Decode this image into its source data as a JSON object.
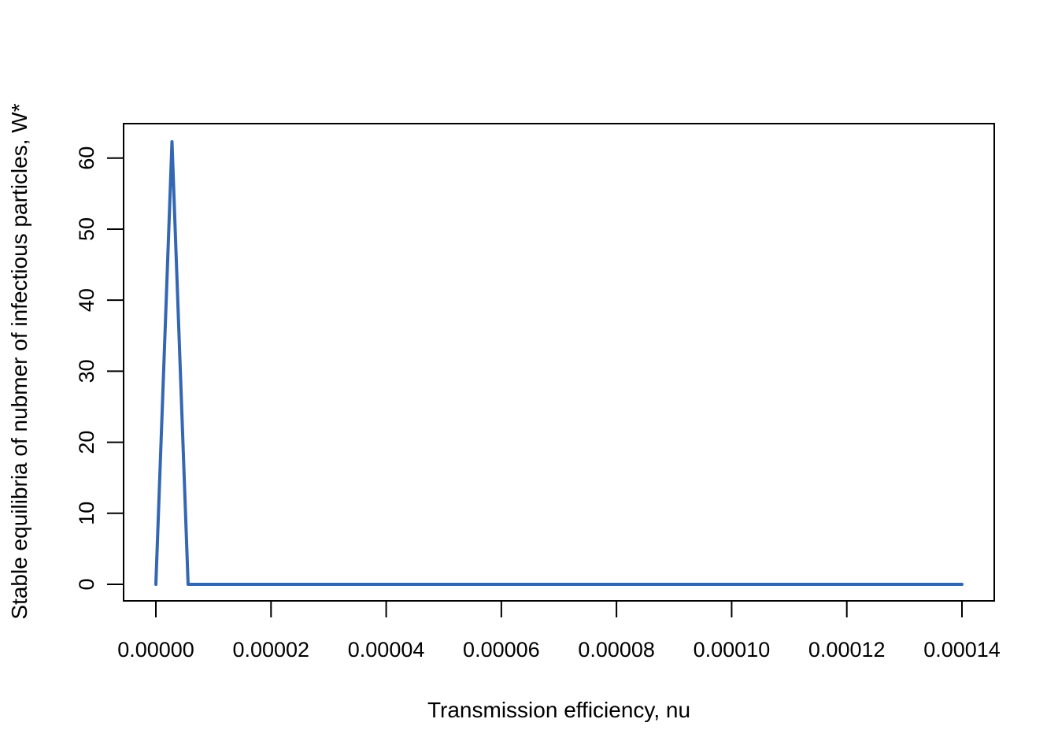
{
  "chart_data": {
    "type": "line",
    "title": "",
    "xlabel": "Transmission efficiency, nu",
    "ylabel": "Stable equilibria of nubmer of infectious particles, W*",
    "xlim": [
      0,
      0.00014
    ],
    "ylim": [
      0,
      62.3
    ],
    "x_ticks": [
      "0.00000",
      "0.00002",
      "0.00004",
      "0.00006",
      "0.00008",
      "0.00010",
      "0.00012",
      "0.00014"
    ],
    "y_ticks": [
      "0",
      "10",
      "20",
      "30",
      "40",
      "50",
      "60"
    ],
    "grid": false,
    "series": [
      {
        "color": "#3366b3",
        "x": [
          0.0,
          2.8e-06,
          5.6e-06,
          0.00014
        ],
        "y": [
          0,
          62.3,
          0,
          0
        ]
      }
    ]
  }
}
